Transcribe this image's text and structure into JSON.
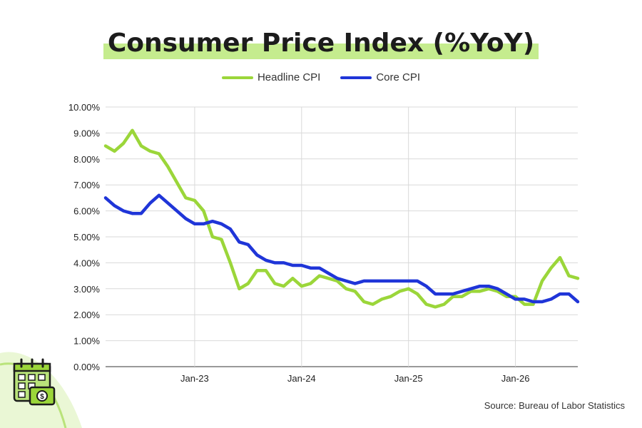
{
  "chart_data": {
    "type": "line",
    "title": "Consumer Price Index (%YoY)",
    "ylim": [
      0,
      10
    ],
    "yticks": [
      "0.00%",
      "1.00%",
      "2.00%",
      "3.00%",
      "4.00%",
      "5.00%",
      "6.00%",
      "7.00%",
      "8.00%",
      "9.00%",
      "10.00%"
    ],
    "xticks": [
      "Jan-23",
      "Jan-24",
      "Jan-25",
      "Jan-26"
    ],
    "x_start": "2022-03",
    "grid": true,
    "legend_position": "top-center",
    "series": [
      {
        "name": "Headline CPI",
        "color": "#9bd63a",
        "values": [
          8.5,
          8.3,
          8.6,
          9.1,
          8.5,
          8.3,
          8.2,
          7.7,
          7.1,
          6.5,
          6.4,
          6.0,
          5.0,
          4.9,
          4.0,
          3.0,
          3.2,
          3.7,
          3.7,
          3.2,
          3.1,
          3.4,
          3.1,
          3.2,
          3.5,
          3.4,
          3.3,
          3.0,
          2.9,
          2.5,
          2.4,
          2.6,
          2.7,
          2.9,
          3.0,
          2.8,
          2.4,
          2.3,
          2.4,
          2.7,
          2.7,
          2.9,
          2.9,
          3.0,
          2.9,
          2.7,
          2.7,
          2.4,
          2.4,
          3.3,
          3.8,
          4.2,
          3.5,
          3.4
        ]
      },
      {
        "name": "Core CPI",
        "color": "#1f35d8",
        "values": [
          6.5,
          6.2,
          6.0,
          5.9,
          5.9,
          6.3,
          6.6,
          6.3,
          6.0,
          5.7,
          5.5,
          5.5,
          5.6,
          5.5,
          5.3,
          4.8,
          4.7,
          4.3,
          4.1,
          4.0,
          4.0,
          3.9,
          3.9,
          3.8,
          3.8,
          3.6,
          3.4,
          3.3,
          3.2,
          3.3,
          3.3,
          3.3,
          3.3,
          3.3,
          3.3,
          3.3,
          3.1,
          2.8,
          2.8,
          2.8,
          2.9,
          3.0,
          3.1,
          3.1,
          3.0,
          2.8,
          2.6,
          2.6,
          2.5,
          2.5,
          2.6,
          2.8,
          2.8,
          2.5
        ]
      }
    ]
  },
  "source_text": "Source: Bureau of Labor Statistics",
  "decor": {
    "icon": "calendar-dollar-icon"
  }
}
